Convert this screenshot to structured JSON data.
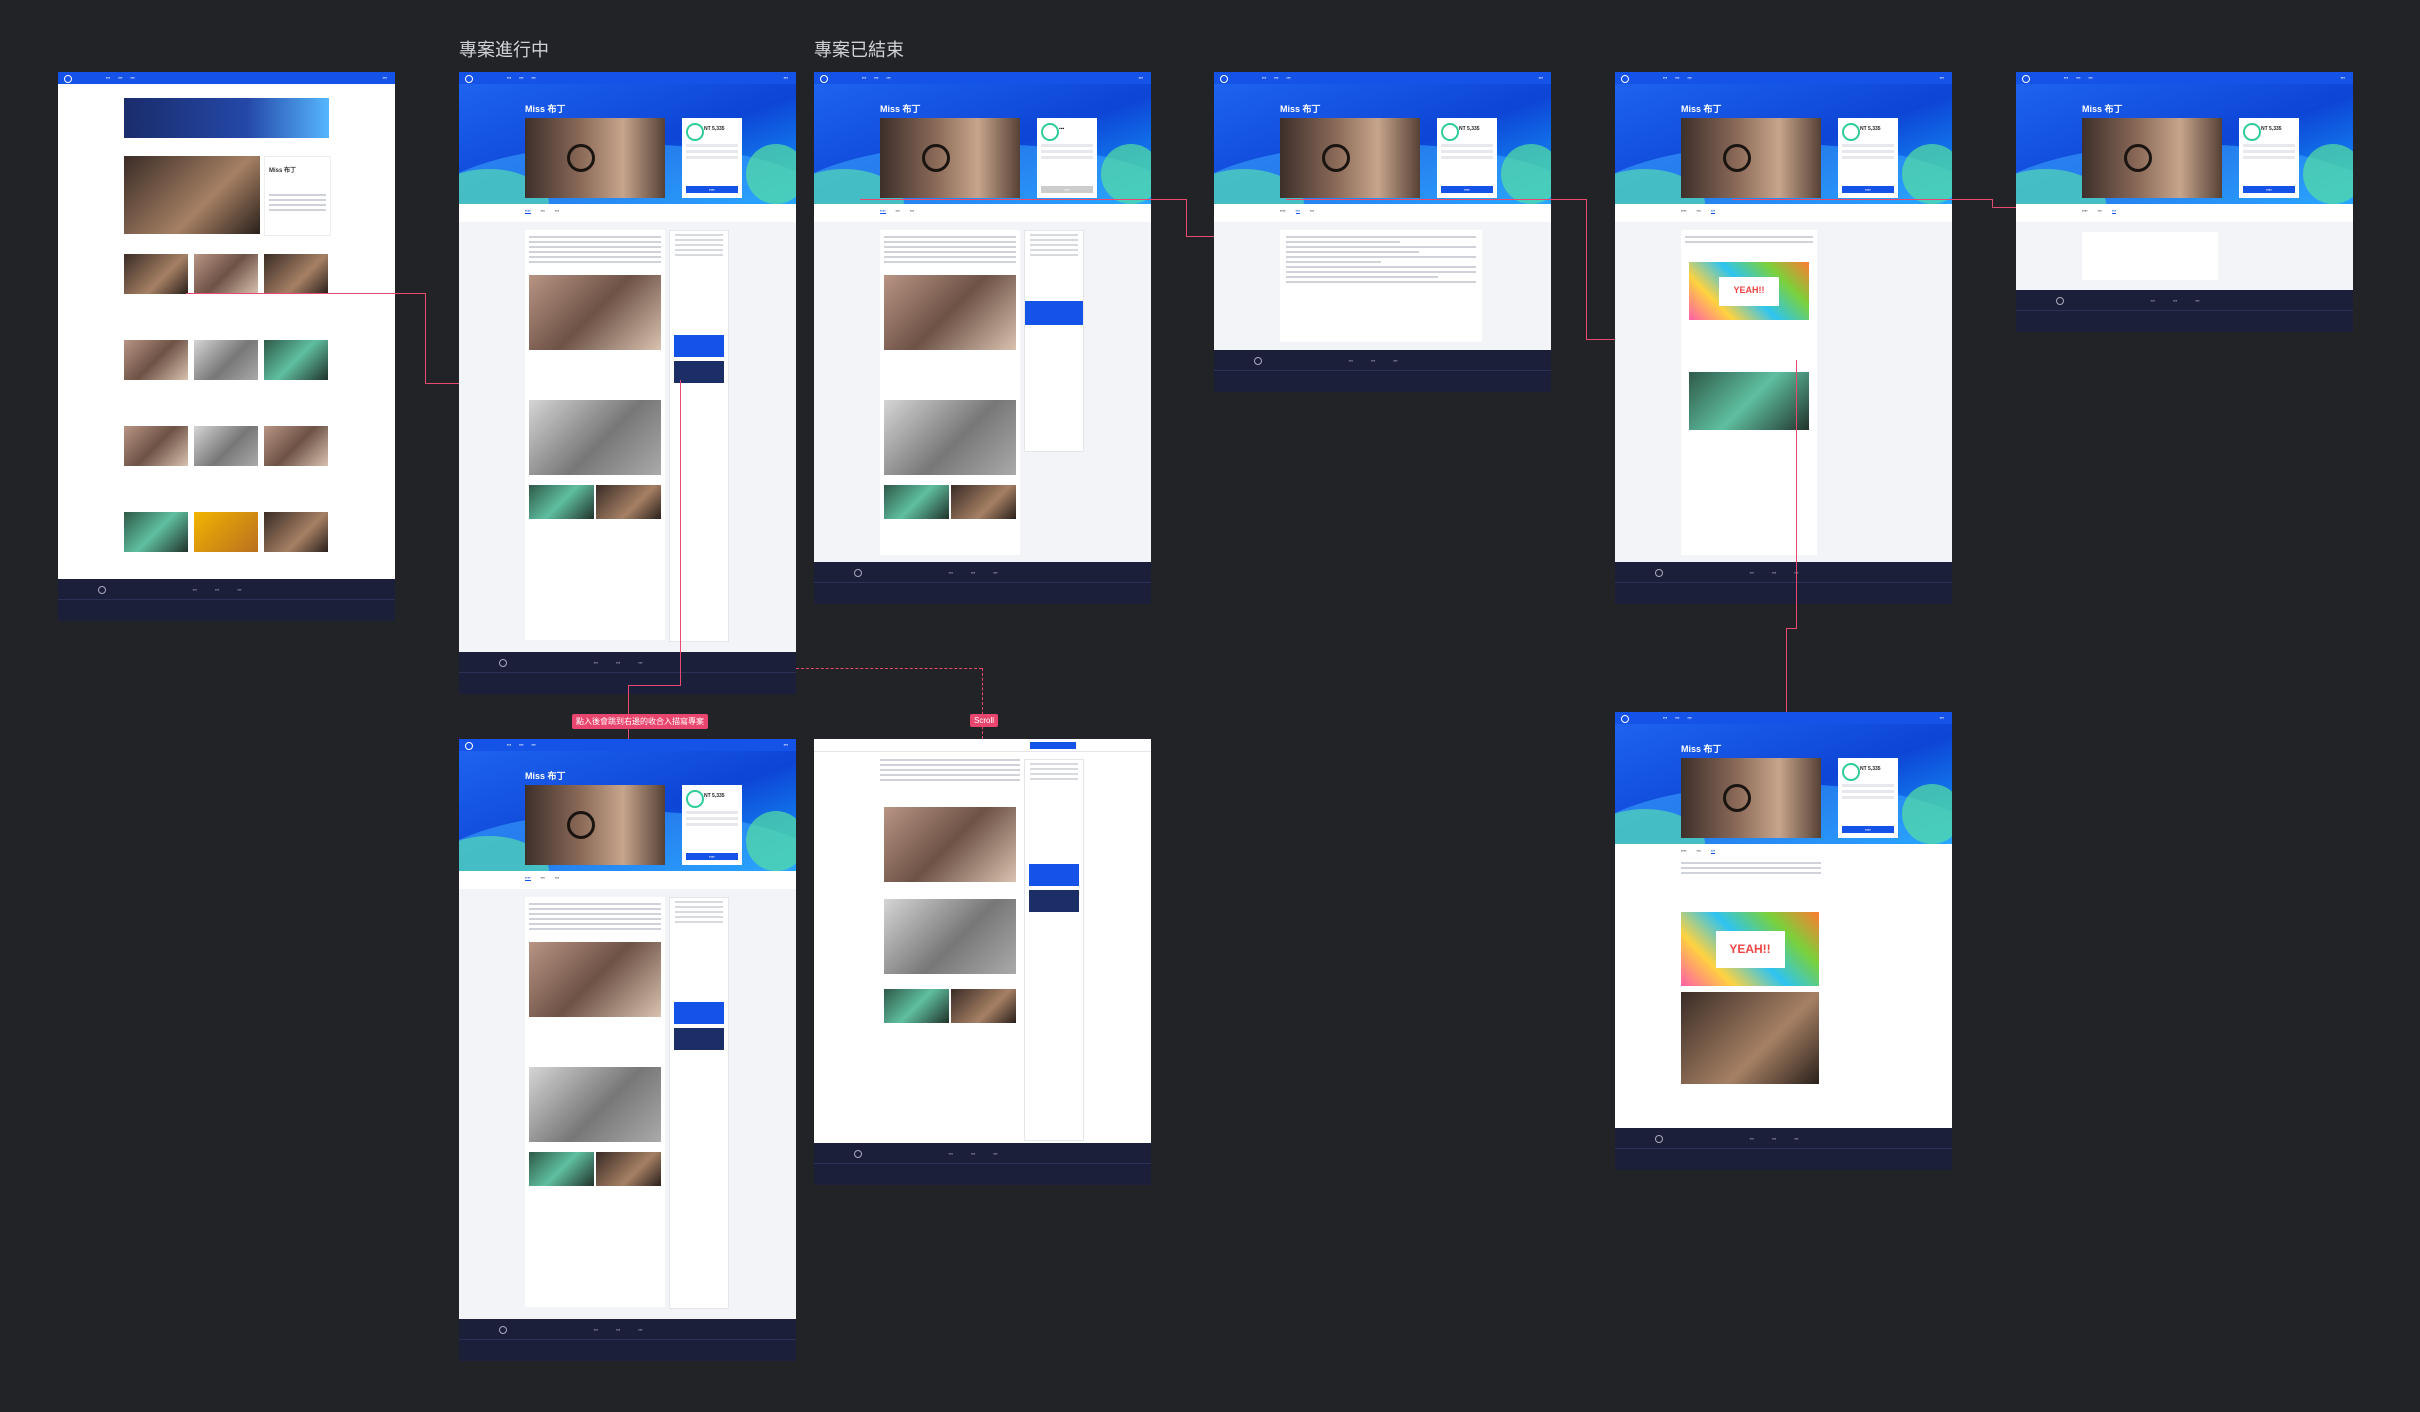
{
  "canvas": {
    "labels": [
      "專案進行中",
      "專案已結束"
    ],
    "tags": [
      "點入後會跳到右邊的收合入描寫專案",
      "Scroll"
    ],
    "yeah_text": "YEAH!!"
  },
  "frame_captions": [
    "",
    "",
    "",
    "",
    "",
    "",
    "",
    "",
    ""
  ],
  "projects": {
    "title": "Miss 布丁",
    "price": "NT 5,335"
  }
}
